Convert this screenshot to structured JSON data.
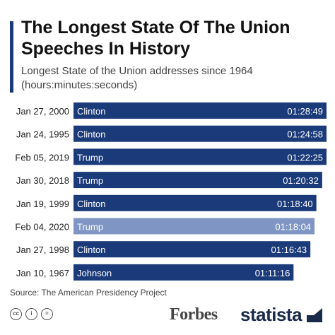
{
  "header": {
    "title": "The Longest State Of The Union Speeches In History",
    "subtitle": "Longest State of the Union addresses since 1964 (hours:minutes:seconds)"
  },
  "chart_data": {
    "type": "bar",
    "orientation": "horizontal",
    "categories": [
      "Jan 27, 2000",
      "Jan 24, 1995",
      "Feb 05, 2019",
      "Jan 30, 2018",
      "Jan 19, 1999",
      "Feb 04, 2020",
      "Jan 27, 1998",
      "Jan 10, 1967"
    ],
    "presidents": [
      "Clinton",
      "Clinton",
      "Trump",
      "Trump",
      "Clinton",
      "Trump",
      "Clinton",
      "Johnson"
    ],
    "labels": [
      "01:28:49",
      "01:24:58",
      "01:22:25",
      "01:20:32",
      "01:18:40",
      "01:18:04",
      "01:16:43",
      "01:11:16"
    ],
    "values_seconds": [
      5329,
      5098,
      4945,
      4832,
      4720,
      4684,
      4603,
      4276
    ],
    "highlight_index": 5,
    "colors": {
      "bar": "#1a3a7a",
      "highlight": "#7f96c4"
    }
  },
  "footer": {
    "source": "Source: The American Presidency Project",
    "brand_forbes": "Forbes",
    "brand_statista": "statista",
    "license_icons": [
      "cc",
      "i",
      "="
    ]
  }
}
